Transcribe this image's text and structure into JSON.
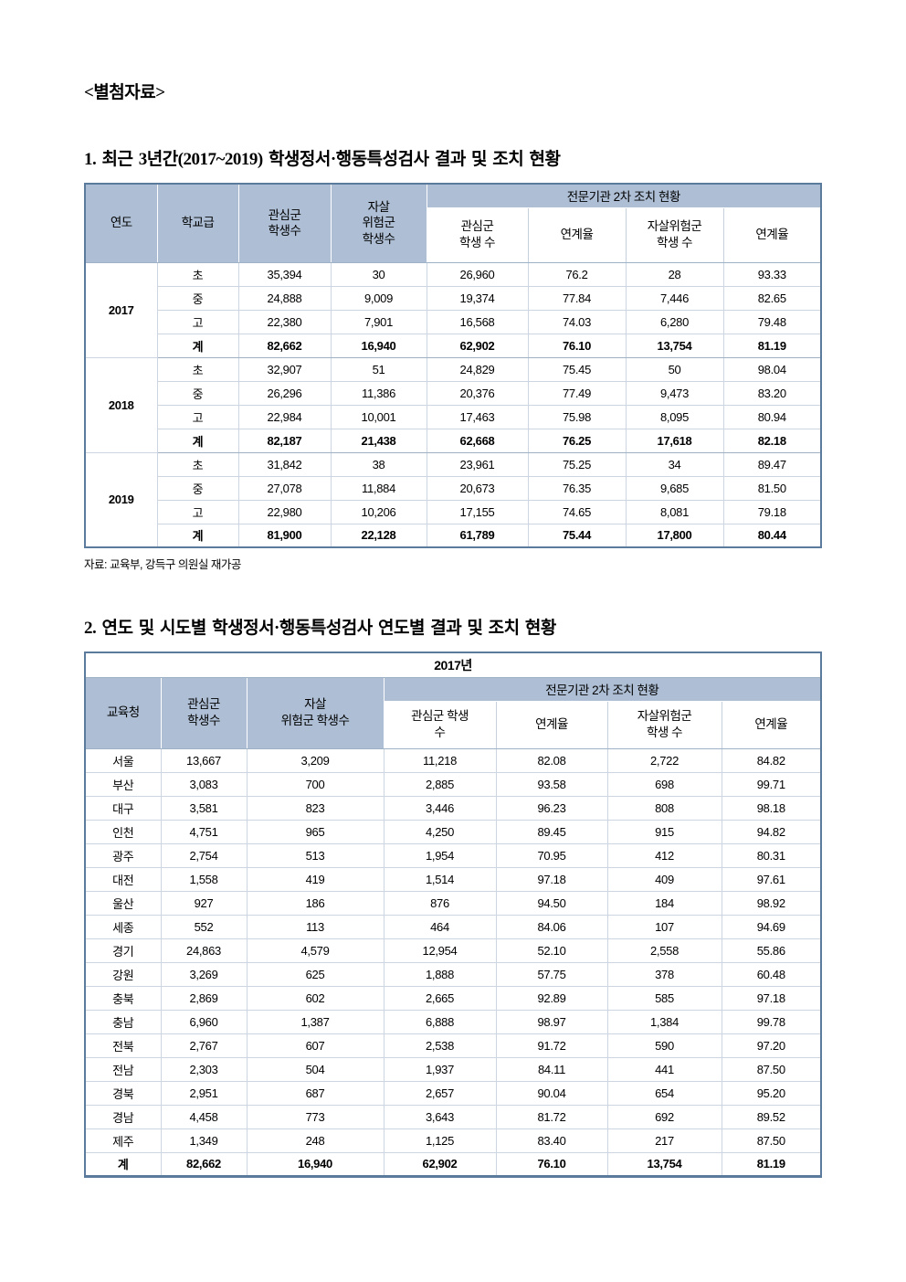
{
  "document": {
    "attachment_label": "<별첨자료>",
    "section1_title": "1. 최근 3년간(2017~2019) 학생정서·행동특성검사 결과 및 조치 현황",
    "source_note": "자료: 교육부, 강득구 의원실 재가공",
    "section2_title": "2. 연도 및 시도별 학생정서·행동특성검사 연도별 결과 및 조치 현황"
  },
  "colors": {
    "header_bg": "#aebfd5",
    "outer_border": "#5b7b9d",
    "inner_border": "#cdd6e0",
    "text": "#000000"
  },
  "table1": {
    "headers": {
      "year": "연도",
      "school_level": "학교급",
      "interest_students": "관심군\n학생수",
      "suicide_risk_students": "자살\n위험군\n학생수",
      "agency_band": "전문기관 2차 조치 현황",
      "sub": [
        "관심군\n학생 수",
        "연계율",
        "자살위험군\n학생 수",
        "연계율"
      ]
    },
    "groups": [
      {
        "year": "2017",
        "rows": [
          {
            "level": "초",
            "values": [
              "35,394",
              "30",
              "26,960",
              "76.2",
              "28",
              "93.33"
            ],
            "bold": false
          },
          {
            "level": "중",
            "values": [
              "24,888",
              "9,009",
              "19,374",
              "77.84",
              "7,446",
              "82.65"
            ],
            "bold": false
          },
          {
            "level": "고",
            "values": [
              "22,380",
              "7,901",
              "16,568",
              "74.03",
              "6,280",
              "79.48"
            ],
            "bold": false
          },
          {
            "level": "계",
            "values": [
              "82,662",
              "16,940",
              "62,902",
              "76.10",
              "13,754",
              "81.19"
            ],
            "bold": true
          }
        ]
      },
      {
        "year": "2018",
        "rows": [
          {
            "level": "초",
            "values": [
              "32,907",
              "51",
              "24,829",
              "75.45",
              "50",
              "98.04"
            ],
            "bold": false
          },
          {
            "level": "중",
            "values": [
              "26,296",
              "11,386",
              "20,376",
              "77.49",
              "9,473",
              "83.20"
            ],
            "bold": false
          },
          {
            "level": "고",
            "values": [
              "22,984",
              "10,001",
              "17,463",
              "75.98",
              "8,095",
              "80.94"
            ],
            "bold": false
          },
          {
            "level": "계",
            "values": [
              "82,187",
              "21,438",
              "62,668",
              "76.25",
              "17,618",
              "82.18"
            ],
            "bold": true
          }
        ]
      },
      {
        "year": "2019",
        "rows": [
          {
            "level": "초",
            "values": [
              "31,842",
              "38",
              "23,961",
              "75.25",
              "34",
              "89.47"
            ],
            "bold": false
          },
          {
            "level": "중",
            "values": [
              "27,078",
              "11,884",
              "20,673",
              "76.35",
              "9,685",
              "81.50"
            ],
            "bold": false
          },
          {
            "level": "고",
            "values": [
              "22,980",
              "10,206",
              "17,155",
              "74.65",
              "8,081",
              "79.18"
            ],
            "bold": false
          },
          {
            "level": "계",
            "values": [
              "81,900",
              "22,128",
              "61,789",
              "75.44",
              "17,800",
              "80.44"
            ],
            "bold": true
          }
        ]
      }
    ]
  },
  "table2": {
    "year_banner": "2017년",
    "headers": {
      "office": "교육청",
      "interest_students": "관심군\n학생수",
      "suicide_risk_students": "자살\n위험군 학생수",
      "agency_band": "전문기관 2차 조치 현황",
      "sub": [
        "관심군 학생\n수",
        "연계율",
        "자살위험군\n학생 수",
        "연계율"
      ]
    },
    "rows": [
      {
        "region": "서울",
        "values": [
          "13,667",
          "3,209",
          "11,218",
          "82.08",
          "2,722",
          "84.82"
        ],
        "bold": false
      },
      {
        "region": "부산",
        "values": [
          "3,083",
          "700",
          "2,885",
          "93.58",
          "698",
          "99.71"
        ],
        "bold": false
      },
      {
        "region": "대구",
        "values": [
          "3,581",
          "823",
          "3,446",
          "96.23",
          "808",
          "98.18"
        ],
        "bold": false
      },
      {
        "region": "인천",
        "values": [
          "4,751",
          "965",
          "4,250",
          "89.45",
          "915",
          "94.82"
        ],
        "bold": false
      },
      {
        "region": "광주",
        "values": [
          "2,754",
          "513",
          "1,954",
          "70.95",
          "412",
          "80.31"
        ],
        "bold": false
      },
      {
        "region": "대전",
        "values": [
          "1,558",
          "419",
          "1,514",
          "97.18",
          "409",
          "97.61"
        ],
        "bold": false
      },
      {
        "region": "울산",
        "values": [
          "927",
          "186",
          "876",
          "94.50",
          "184",
          "98.92"
        ],
        "bold": false
      },
      {
        "region": "세종",
        "values": [
          "552",
          "113",
          "464",
          "84.06",
          "107",
          "94.69"
        ],
        "bold": false
      },
      {
        "region": "경기",
        "values": [
          "24,863",
          "4,579",
          "12,954",
          "52.10",
          "2,558",
          "55.86"
        ],
        "bold": false
      },
      {
        "region": "강원",
        "values": [
          "3,269",
          "625",
          "1,888",
          "57.75",
          "378",
          "60.48"
        ],
        "bold": false
      },
      {
        "region": "충북",
        "values": [
          "2,869",
          "602",
          "2,665",
          "92.89",
          "585",
          "97.18"
        ],
        "bold": false
      },
      {
        "region": "충남",
        "values": [
          "6,960",
          "1,387",
          "6,888",
          "98.97",
          "1,384",
          "99.78"
        ],
        "bold": false
      },
      {
        "region": "전북",
        "values": [
          "2,767",
          "607",
          "2,538",
          "91.72",
          "590",
          "97.20"
        ],
        "bold": false
      },
      {
        "region": "전남",
        "values": [
          "2,303",
          "504",
          "1,937",
          "84.11",
          "441",
          "87.50"
        ],
        "bold": false
      },
      {
        "region": "경북",
        "values": [
          "2,951",
          "687",
          "2,657",
          "90.04",
          "654",
          "95.20"
        ],
        "bold": false
      },
      {
        "region": "경남",
        "values": [
          "4,458",
          "773",
          "3,643",
          "81.72",
          "692",
          "89.52"
        ],
        "bold": false
      },
      {
        "region": "제주",
        "values": [
          "1,349",
          "248",
          "1,125",
          "83.40",
          "217",
          "87.50"
        ],
        "bold": false
      },
      {
        "region": "계",
        "values": [
          "82,662",
          "16,940",
          "62,902",
          "76.10",
          "13,754",
          "81.19"
        ],
        "bold": true
      }
    ]
  }
}
